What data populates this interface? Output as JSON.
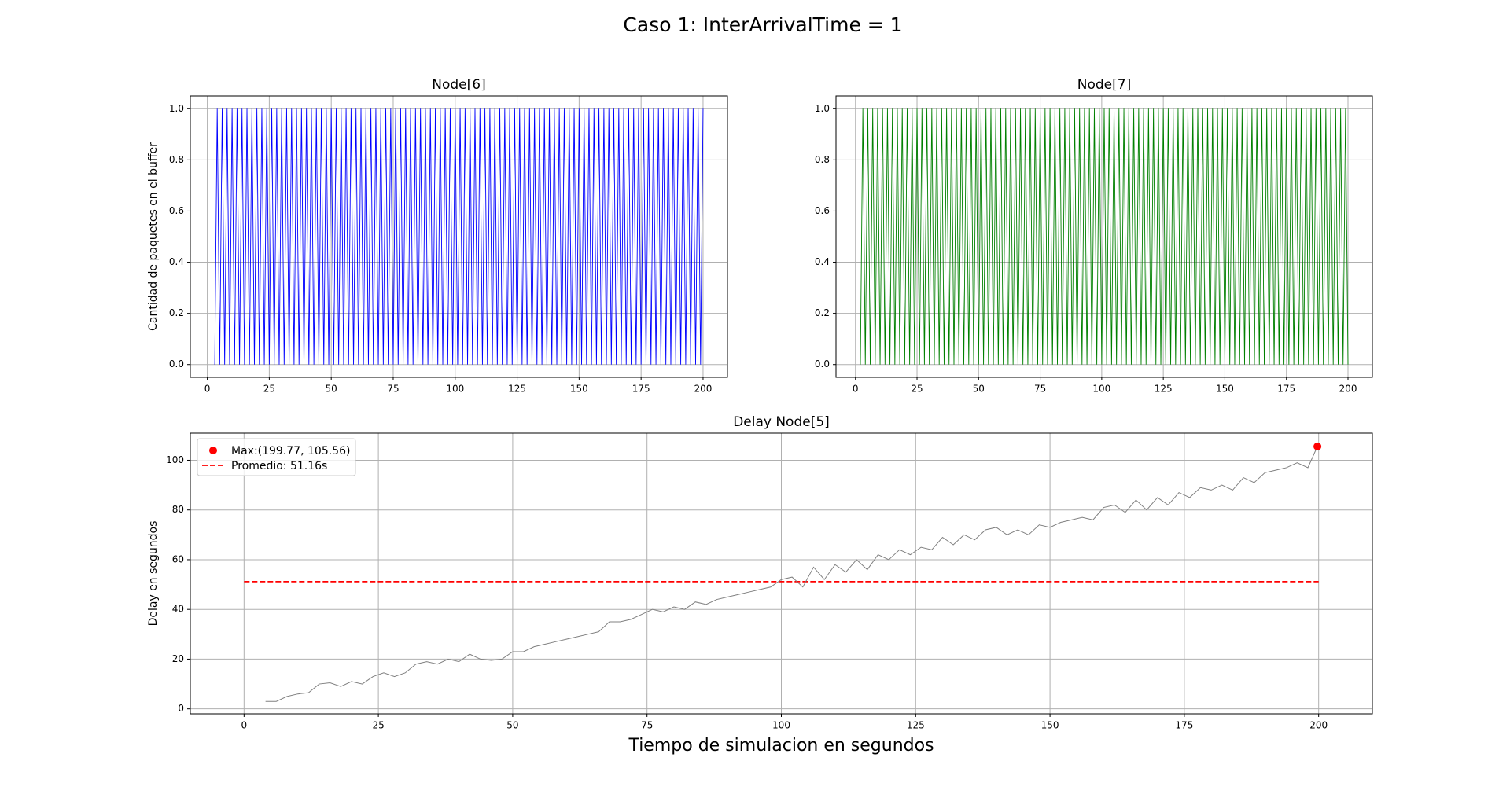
{
  "title": "Caso 1: InterArrivalTime = 1",
  "chart_data": [
    {
      "type": "line",
      "title": "Node[6]",
      "ylabel": "Cantidad de paquetes en el buffer",
      "grid": true,
      "xlim": [
        -6.85,
        209.85
      ],
      "ylim": [
        -0.05,
        1.05
      ],
      "xticks": [
        0,
        25,
        50,
        75,
        100,
        125,
        150,
        175,
        200
      ],
      "yticks": [
        {
          "value": 0,
          "label": "0.0"
        },
        {
          "value": 0.2,
          "label": "0.2"
        },
        {
          "value": 0.4,
          "label": "0.4"
        },
        {
          "value": 0.6,
          "label": "0.6"
        },
        {
          "value": 0.8,
          "label": "0.8"
        },
        {
          "value": 1,
          "label": "1.0"
        }
      ],
      "x": [
        3,
        4,
        5,
        6,
        7,
        8,
        9,
        10,
        11,
        12,
        13,
        14,
        15,
        16,
        17,
        18,
        19,
        20,
        21,
        22,
        23,
        24,
        25,
        26,
        27,
        28,
        29,
        30,
        31,
        32,
        33,
        34,
        35,
        36,
        37,
        38,
        39,
        40,
        41,
        42,
        43,
        44,
        45,
        46,
        47,
        48,
        49,
        50,
        51,
        52,
        53,
        54,
        55,
        56,
        57,
        58,
        59,
        60,
        61,
        62,
        63,
        64,
        65,
        66,
        67,
        68,
        69,
        70,
        71,
        72,
        73,
        74,
        75,
        76,
        77,
        78,
        79,
        80,
        81,
        82,
        83,
        84,
        85,
        86,
        87,
        88,
        89,
        90,
        91,
        92,
        93,
        94,
        95,
        96,
        97,
        98,
        99,
        100,
        101,
        102,
        103,
        104,
        105,
        106,
        107,
        108,
        109,
        110,
        111,
        112,
        113,
        114,
        115,
        116,
        117,
        118,
        119,
        120,
        121,
        122,
        123,
        124,
        125,
        126,
        127,
        128,
        129,
        130,
        131,
        132,
        133,
        134,
        135,
        136,
        137,
        138,
        139,
        140,
        141,
        142,
        143,
        144,
        145,
        146,
        147,
        148,
        149,
        150,
        151,
        152,
        153,
        154,
        155,
        156,
        157,
        158,
        159,
        160,
        161,
        162,
        163,
        164,
        165,
        166,
        167,
        168,
        169,
        170,
        171,
        172,
        173,
        174,
        175,
        176,
        177,
        178,
        179,
        180,
        181,
        182,
        183,
        184,
        185,
        186,
        187,
        188,
        189,
        190,
        191,
        192,
        193,
        194,
        195,
        196,
        197,
        198,
        199,
        200
      ],
      "series": [
        {
          "color": "#0000ff",
          "values": [
            0,
            1,
            0,
            1,
            0,
            1,
            0,
            1,
            0,
            1,
            0,
            1,
            0,
            1,
            0,
            1,
            0,
            1,
            0,
            1,
            0,
            1,
            0,
            1,
            0,
            1,
            0,
            1,
            0,
            1,
            0,
            1,
            0,
            1,
            0,
            1,
            0,
            1,
            0,
            1,
            0,
            1,
            0,
            1,
            0,
            1,
            0,
            1,
            0,
            1,
            0,
            1,
            0,
            1,
            0,
            1,
            0,
            1,
            0,
            1,
            0,
            1,
            0,
            1,
            0,
            1,
            0,
            1,
            0,
            1,
            0,
            1,
            0,
            1,
            0,
            1,
            0,
            1,
            0,
            1,
            0,
            1,
            0,
            1,
            0,
            1,
            0,
            1,
            0,
            1,
            0,
            1,
            0,
            1,
            0,
            1,
            0,
            1,
            0,
            1,
            0,
            1,
            0,
            1,
            0,
            1,
            0,
            1,
            0,
            1,
            0,
            1,
            0,
            1,
            0,
            1,
            0,
            1,
            0,
            1,
            0,
            1,
            0,
            1,
            0,
            1,
            0,
            1,
            0,
            1,
            0,
            1,
            0,
            1,
            0,
            1,
            0,
            1,
            0,
            1,
            0,
            1,
            0,
            1,
            0,
            1,
            0,
            1,
            0,
            1,
            0,
            1,
            0,
            1,
            0,
            1,
            0,
            1,
            0,
            1,
            0,
            1,
            0,
            1,
            0,
            1,
            0,
            1,
            0,
            1,
            0,
            1,
            0,
            1,
            0,
            1,
            0,
            1,
            0,
            1,
            0,
            1,
            0,
            1,
            0,
            1,
            0,
            1,
            0,
            1,
            0,
            1,
            0,
            1,
            0,
            1,
            0,
            1
          ]
        }
      ]
    },
    {
      "type": "line",
      "title": "Node[7]",
      "grid": true,
      "xlim": [
        -7.9,
        209.9
      ],
      "ylim": [
        -0.05,
        1.05
      ],
      "xticks": [
        0,
        25,
        50,
        75,
        100,
        125,
        150,
        175,
        200
      ],
      "yticks": [
        {
          "value": 0,
          "label": "0.0"
        },
        {
          "value": 0.2,
          "label": "0.2"
        },
        {
          "value": 0.4,
          "label": "0.4"
        },
        {
          "value": 0.6,
          "label": "0.6"
        },
        {
          "value": 0.8,
          "label": "0.8"
        },
        {
          "value": 1,
          "label": "1.0"
        }
      ],
      "x": [
        2,
        3,
        4,
        5,
        6,
        7,
        8,
        9,
        10,
        11,
        12,
        13,
        14,
        15,
        16,
        17,
        18,
        19,
        20,
        21,
        22,
        23,
        24,
        25,
        26,
        27,
        28,
        29,
        30,
        31,
        32,
        33,
        34,
        35,
        36,
        37,
        38,
        39,
        40,
        41,
        42,
        43,
        44,
        45,
        46,
        47,
        48,
        49,
        50,
        51,
        52,
        53,
        54,
        55,
        56,
        57,
        58,
        59,
        60,
        61,
        62,
        63,
        64,
        65,
        66,
        67,
        68,
        69,
        70,
        71,
        72,
        73,
        74,
        75,
        76,
        77,
        78,
        79,
        80,
        81,
        82,
        83,
        84,
        85,
        86,
        87,
        88,
        89,
        90,
        91,
        92,
        93,
        94,
        95,
        96,
        97,
        98,
        99,
        100,
        101,
        102,
        103,
        104,
        105,
        106,
        107,
        108,
        109,
        110,
        111,
        112,
        113,
        114,
        115,
        116,
        117,
        118,
        119,
        120,
        121,
        122,
        123,
        124,
        125,
        126,
        127,
        128,
        129,
        130,
        131,
        132,
        133,
        134,
        135,
        136,
        137,
        138,
        139,
        140,
        141,
        142,
        143,
        144,
        145,
        146,
        147,
        148,
        149,
        150,
        151,
        152,
        153,
        154,
        155,
        156,
        157,
        158,
        159,
        160,
        161,
        162,
        163,
        164,
        165,
        166,
        167,
        168,
        169,
        170,
        171,
        172,
        173,
        174,
        175,
        176,
        177,
        178,
        179,
        180,
        181,
        182,
        183,
        184,
        185,
        186,
        187,
        188,
        189,
        190,
        191,
        192,
        193,
        194,
        195,
        196,
        197,
        198,
        199,
        200
      ],
      "series": [
        {
          "color": "#008000",
          "values": [
            0,
            1,
            0,
            1,
            0,
            1,
            0,
            1,
            0,
            1,
            0,
            1,
            0,
            1,
            0,
            1,
            0,
            1,
            0,
            1,
            0,
            1,
            0,
            1,
            0,
            1,
            0,
            1,
            0,
            1,
            0,
            1,
            0,
            1,
            0,
            1,
            0,
            1,
            0,
            1,
            0,
            1,
            0,
            1,
            0,
            1,
            0,
            1,
            0,
            1,
            0,
            1,
            0,
            1,
            0,
            1,
            0,
            1,
            0,
            1,
            0,
            1,
            0,
            1,
            0,
            1,
            0,
            1,
            0,
            1,
            0,
            1,
            0,
            1,
            0,
            1,
            0,
            1,
            0,
            1,
            0,
            1,
            0,
            1,
            0,
            1,
            0,
            1,
            0,
            1,
            0,
            1,
            0,
            1,
            0,
            1,
            0,
            1,
            0,
            1,
            0,
            1,
            0,
            1,
            0,
            1,
            0,
            1,
            0,
            1,
            0,
            1,
            0,
            1,
            0,
            1,
            0,
            1,
            0,
            1,
            0,
            1,
            0,
            1,
            0,
            1,
            0,
            1,
            0,
            1,
            0,
            1,
            0,
            1,
            0,
            1,
            0,
            1,
            0,
            1,
            0,
            1,
            0,
            1,
            0,
            1,
            0,
            1,
            0,
            1,
            0,
            1,
            0,
            1,
            0,
            1,
            0,
            1,
            0,
            1,
            0,
            1,
            0,
            1,
            0,
            1,
            0,
            1,
            0,
            1,
            0,
            1,
            0,
            1,
            0,
            1,
            0,
            1,
            0,
            1,
            0,
            1,
            0,
            1,
            0,
            1,
            0,
            1,
            0,
            1,
            0,
            1,
            0,
            1,
            0,
            1,
            0,
            1,
            0
          ]
        }
      ]
    },
    {
      "type": "line",
      "title": "Delay Node[5]",
      "ylabel": "Delay en segundos",
      "xlabel": "Tiempo de simulacion en segundos",
      "grid": true,
      "xlim": [
        -10,
        210
      ],
      "ylim": [
        -2,
        110.9
      ],
      "xticks": [
        0,
        25,
        50,
        75,
        100,
        125,
        150,
        175,
        200
      ],
      "yticks": [
        0,
        20,
        40,
        60,
        80,
        100
      ],
      "x": [
        4,
        6,
        8,
        10,
        12,
        14,
        16,
        18,
        20,
        22,
        24,
        26,
        28,
        30,
        32,
        34,
        36,
        38,
        40,
        42,
        44,
        46,
        48,
        50,
        52,
        54,
        56,
        58,
        60,
        62,
        64,
        66,
        68,
        70,
        72,
        74,
        76,
        78,
        80,
        82,
        84,
        86,
        88,
        90,
        92,
        94,
        96,
        98,
        100,
        102,
        104,
        106,
        108,
        110,
        112,
        114,
        116,
        118,
        120,
        122,
        124,
        126,
        128,
        130,
        132,
        134,
        136,
        138,
        140,
        142,
        144,
        146,
        148,
        150,
        152,
        154,
        156,
        158,
        160,
        162,
        164,
        166,
        168,
        170,
        172,
        174,
        176,
        178,
        180,
        182,
        184,
        186,
        188,
        190,
        192,
        194,
        196,
        198,
        199.77
      ],
      "series": [
        {
          "color": "#808080",
          "values": [
            3,
            3,
            5,
            6,
            6.5,
            10,
            10.5,
            9,
            11,
            10,
            13,
            14.5,
            13,
            14.5,
            18,
            19,
            18,
            20,
            19,
            22,
            20,
            19.5,
            20,
            23,
            23,
            25,
            26,
            27,
            28,
            29,
            30,
            31,
            35,
            35,
            36,
            38,
            40,
            39,
            41,
            40,
            43,
            42,
            44,
            45,
            46,
            47,
            48,
            49,
            52,
            53,
            49,
            57,
            52,
            58,
            55,
            60,
            56,
            62,
            60,
            64,
            62,
            65,
            64,
            69,
            66,
            70,
            68,
            72,
            73,
            70,
            72,
            70,
            74,
            73,
            75,
            76,
            77,
            76,
            81,
            82,
            79,
            84,
            80,
            85,
            82,
            87,
            85,
            89,
            88,
            90,
            88,
            93,
            91,
            95,
            96,
            97,
            99,
            97,
            105.56
          ]
        }
      ],
      "max_point": {
        "x": 199.77,
        "y": 105.56,
        "color": "#ff0000",
        "label": "Max:(199.77, 105.56)"
      },
      "mean": {
        "value": 51.16,
        "x": [
          0,
          200
        ],
        "color": "#ff0000",
        "label": "Promedio: 51.16s"
      },
      "legend": "upper left"
    }
  ]
}
